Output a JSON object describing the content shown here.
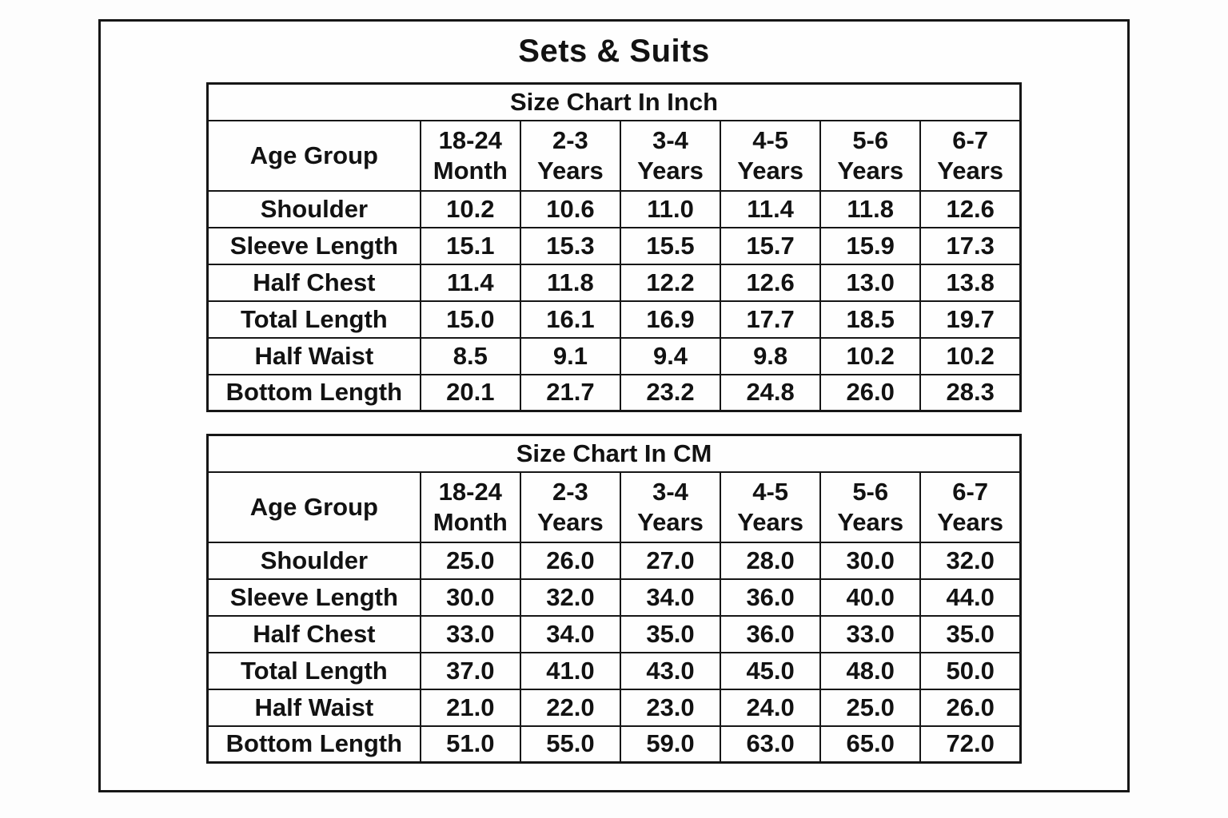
{
  "title": "Sets & Suits",
  "colors": {
    "background": "#fdfdfd",
    "text": "#121212",
    "border": "#161616"
  },
  "chart_data": [
    {
      "type": "table",
      "title": "Size Chart In Inch",
      "corner_label": "Age Group",
      "columns": [
        [
          "18-24",
          "Month"
        ],
        [
          "2-3",
          "Years"
        ],
        [
          "3-4",
          "Years"
        ],
        [
          "4-5",
          "Years"
        ],
        [
          "5-6",
          "Years"
        ],
        [
          "6-7",
          "Years"
        ]
      ],
      "rows": [
        {
          "label": "Shoulder",
          "values": [
            "10.2",
            "10.6",
            "11.0",
            "11.4",
            "11.8",
            "12.6"
          ]
        },
        {
          "label": "Sleeve Length",
          "values": [
            "15.1",
            "15.3",
            "15.5",
            "15.7",
            "15.9",
            "17.3"
          ]
        },
        {
          "label": "Half Chest",
          "values": [
            "11.4",
            "11.8",
            "12.2",
            "12.6",
            "13.0",
            "13.8"
          ]
        },
        {
          "label": "Total Length",
          "values": [
            "15.0",
            "16.1",
            "16.9",
            "17.7",
            "18.5",
            "19.7"
          ]
        },
        {
          "label": "Half Waist",
          "values": [
            "8.5",
            "9.1",
            "9.4",
            "9.8",
            "10.2",
            "10.2"
          ]
        },
        {
          "label": "Bottom Length",
          "values": [
            "20.1",
            "21.7",
            "23.2",
            "24.8",
            "26.0",
            "28.3"
          ]
        }
      ]
    },
    {
      "type": "table",
      "title": "Size Chart In CM",
      "corner_label": "Age Group",
      "columns": [
        [
          "18-24",
          "Month"
        ],
        [
          "2-3",
          "Years"
        ],
        [
          "3-4",
          "Years"
        ],
        [
          "4-5",
          "Years"
        ],
        [
          "5-6",
          "Years"
        ],
        [
          "6-7",
          "Years"
        ]
      ],
      "rows": [
        {
          "label": "Shoulder",
          "values": [
            "25.0",
            "26.0",
            "27.0",
            "28.0",
            "30.0",
            "32.0"
          ]
        },
        {
          "label": "Sleeve Length",
          "values": [
            "30.0",
            "32.0",
            "34.0",
            "36.0",
            "40.0",
            "44.0"
          ]
        },
        {
          "label": "Half Chest",
          "values": [
            "33.0",
            "34.0",
            "35.0",
            "36.0",
            "33.0",
            "35.0"
          ]
        },
        {
          "label": "Total Length",
          "values": [
            "37.0",
            "41.0",
            "43.0",
            "45.0",
            "48.0",
            "50.0"
          ]
        },
        {
          "label": "Half Waist",
          "values": [
            "21.0",
            "22.0",
            "23.0",
            "24.0",
            "25.0",
            "26.0"
          ]
        },
        {
          "label": "Bottom Length",
          "values": [
            "51.0",
            "55.0",
            "59.0",
            "63.0",
            "65.0",
            "72.0"
          ]
        }
      ]
    }
  ]
}
